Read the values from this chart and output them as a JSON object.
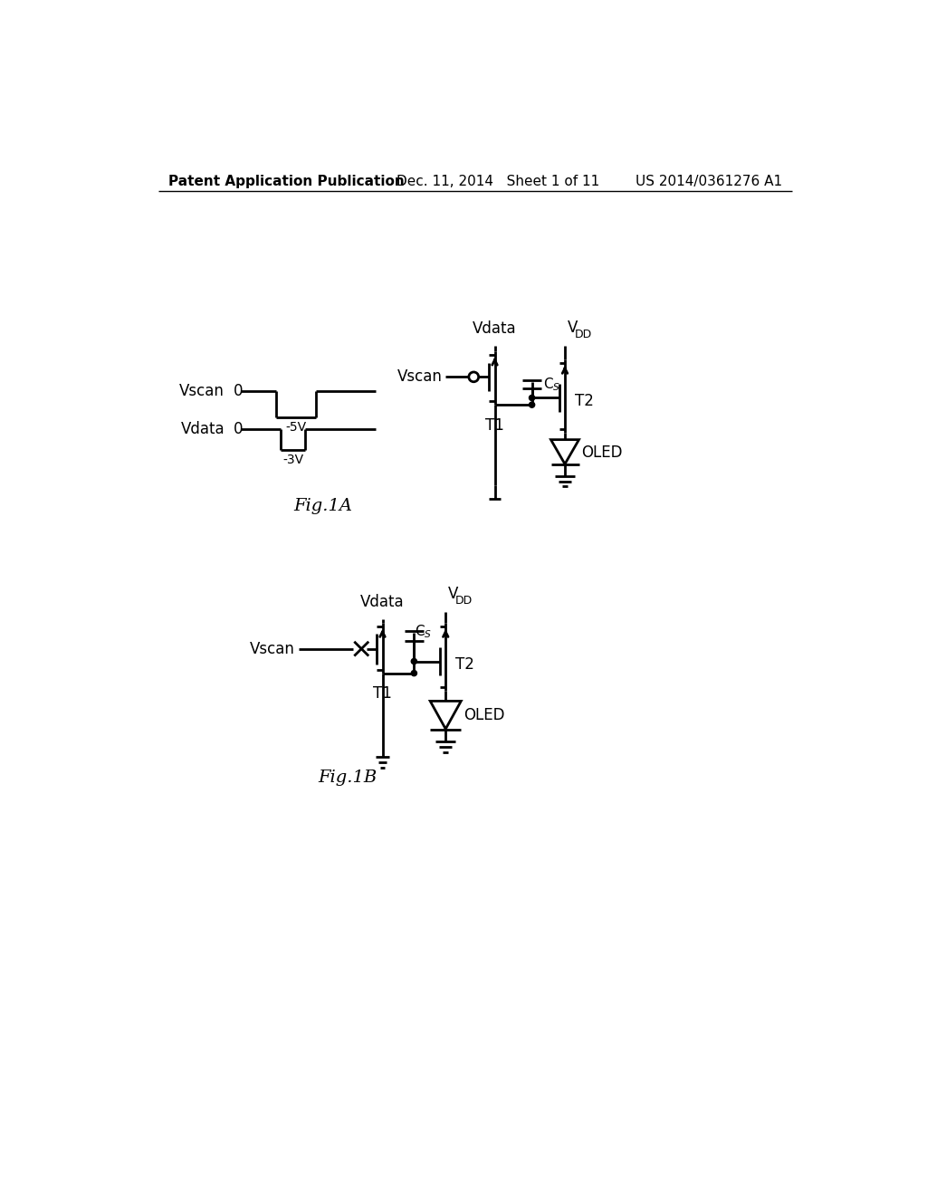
{
  "background_color": "#ffffff",
  "header": {
    "left": "Patent Application Publication",
    "center": "Dec. 11, 2014   Sheet 1 of 11",
    "right": "US 2014/0361276 A1",
    "fontsize": 11
  }
}
